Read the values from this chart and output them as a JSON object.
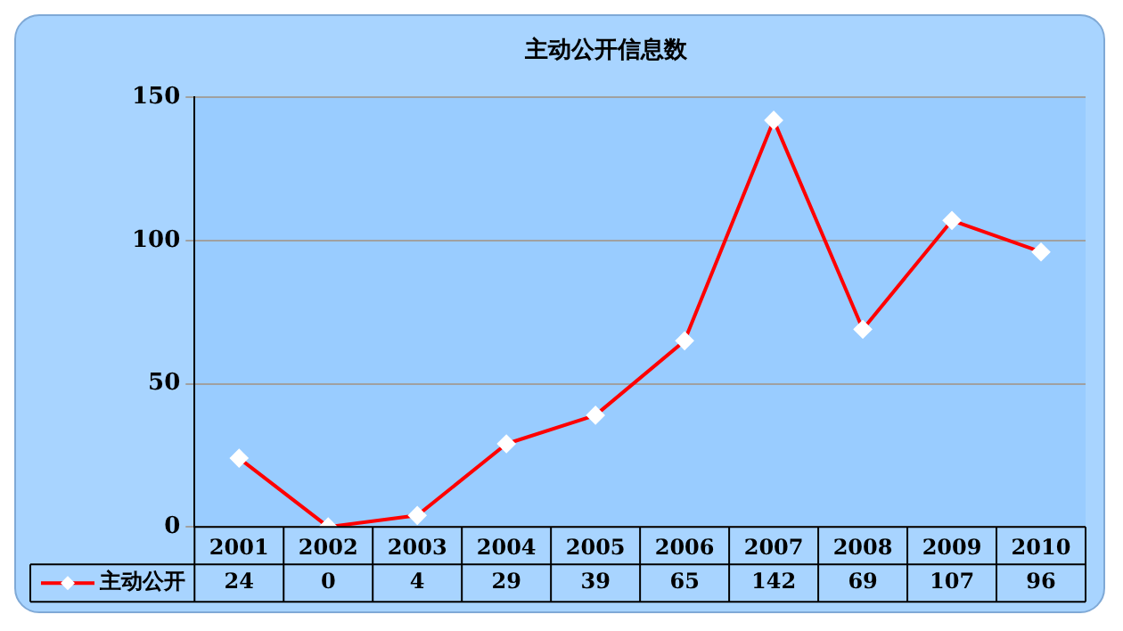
{
  "chart_data": {
    "type": "line",
    "title": "主动公开信息数",
    "categories": [
      "2001",
      "2002",
      "2003",
      "2004",
      "2005",
      "2006",
      "2007",
      "2008",
      "2009",
      "2010"
    ],
    "series": [
      {
        "name": "主动公开",
        "color": "#ff0000",
        "values": [
          24,
          0,
          4,
          29,
          39,
          65,
          142,
          69,
          107,
          96
        ]
      }
    ],
    "ylim": [
      0,
      150
    ],
    "yticks": [
      0,
      50,
      100,
      150
    ],
    "grid": "y",
    "legend": "bottom",
    "marker": "diamond",
    "data_labels": true
  }
}
